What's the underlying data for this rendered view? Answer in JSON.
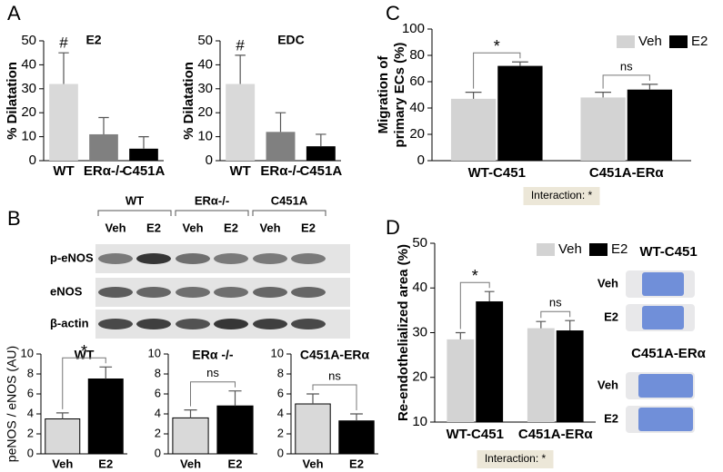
{
  "panel_labels": [
    "A",
    "B",
    "C",
    "D"
  ],
  "chart_data": [
    {
      "type": "bar",
      "title": "E2",
      "ylabel": "% Dilatation",
      "categories": [
        "WT",
        "ERα-/-",
        "C451A"
      ],
      "values": [
        32,
        11,
        5
      ],
      "errors": [
        13,
        7,
        5
      ],
      "colors": [
        "#d9d9d9",
        "#808080",
        "#000000"
      ],
      "ylim": [
        0,
        50
      ],
      "yticks": [
        0,
        10,
        20,
        30,
        40,
        50
      ],
      "annotations": [
        {
          "text": "#",
          "category": "WT"
        }
      ]
    },
    {
      "type": "bar",
      "title": "EDC",
      "ylabel": "% Dilatation",
      "categories": [
        "WT",
        "ERα-/-",
        "C451A"
      ],
      "values": [
        32,
        12,
        6
      ],
      "errors": [
        12,
        8,
        5
      ],
      "colors": [
        "#d9d9d9",
        "#808080",
        "#000000"
      ],
      "ylim": [
        0,
        50
      ],
      "yticks": [
        0,
        10,
        20,
        30,
        40,
        50
      ],
      "annotations": [
        {
          "text": "#",
          "category": "WT"
        }
      ]
    },
    {
      "type": "bar",
      "ylabel": [
        "Migration  of",
        "primary ECs (%)"
      ],
      "categories": [
        "WT-C451",
        "C451A-ERα"
      ],
      "series": [
        {
          "name": "Veh",
          "color": "#d3d3d3",
          "values": [
            47,
            48
          ],
          "errors": [
            5,
            4
          ]
        },
        {
          "name": "E2",
          "color": "#000000",
          "values": [
            72,
            54
          ],
          "errors": [
            3,
            4
          ]
        }
      ],
      "ylim": [
        0,
        100
      ],
      "yticks": [
        0,
        20,
        40,
        60,
        80,
        100
      ],
      "annotations": [
        {
          "text": "*",
          "category": "WT-C451"
        },
        {
          "text": "ns",
          "category": "C451A-ERα"
        }
      ],
      "note": "Interaction: *"
    },
    {
      "type": "bar",
      "title": "WT",
      "ylabel": "peNOS / eNOS (AU)",
      "categories": [
        "Veh",
        "E2"
      ],
      "values": [
        3.5,
        7.5
      ],
      "errors": [
        0.6,
        1.2
      ],
      "colors": [
        "#d9d9d9",
        "#000000"
      ],
      "ylim": [
        0,
        10
      ],
      "yticks": [
        0,
        2,
        4,
        6,
        8,
        10
      ],
      "annotations": [
        {
          "text": "*"
        }
      ]
    },
    {
      "type": "bar",
      "title": "ERα -/-",
      "categories": [
        "Veh",
        "E2"
      ],
      "values": [
        3.6,
        4.8
      ],
      "errors": [
        0.8,
        1.5
      ],
      "colors": [
        "#d9d9d9",
        "#000000"
      ],
      "ylim": [
        0,
        10
      ],
      "yticks": [
        0,
        2,
        4,
        6,
        8,
        10
      ],
      "annotations": [
        {
          "text": "ns"
        }
      ]
    },
    {
      "type": "bar",
      "title": "C451A-ERα",
      "categories": [
        "Veh",
        "E2"
      ],
      "values": [
        5,
        3.3
      ],
      "errors": [
        1,
        0.7
      ],
      "colors": [
        "#d9d9d9",
        "#000000"
      ],
      "ylim": [
        0,
        10
      ],
      "yticks": [
        0,
        2,
        4,
        6,
        8,
        10
      ],
      "annotations": [
        {
          "text": "ns"
        }
      ]
    },
    {
      "type": "bar",
      "ylabel": "Re-endothelialized area (%)",
      "categories": [
        "WT-C451",
        "C451A-ERα"
      ],
      "series": [
        {
          "name": "Veh",
          "color": "#d3d3d3",
          "values": [
            28.5,
            31
          ],
          "errors": [
            1.5,
            1.5
          ]
        },
        {
          "name": "E2",
          "color": "#000000",
          "values": [
            37,
            30.5
          ],
          "errors": [
            2.2,
            2.2
          ]
        }
      ],
      "ylim": [
        10,
        50
      ],
      "yticks": [
        10,
        20,
        30,
        40,
        50
      ],
      "annotations": [
        {
          "text": "*",
          "category": "WT-C451"
        },
        {
          "text": "ns",
          "category": "C451A-ERα"
        }
      ],
      "note": "Interaction: *"
    }
  ],
  "blot": {
    "groups": [
      "WT",
      "ERα-/-",
      "C451A"
    ],
    "lanes": [
      "Veh",
      "E2"
    ],
    "rows": [
      "p-eNOS",
      "eNOS",
      "β-actin"
    ]
  },
  "images": {
    "groups": [
      {
        "title": "WT-C451",
        "rows": [
          "Veh",
          "E2"
        ]
      },
      {
        "title": "C451A-ERα",
        "rows": [
          "Veh",
          "E2"
        ]
      }
    ]
  }
}
